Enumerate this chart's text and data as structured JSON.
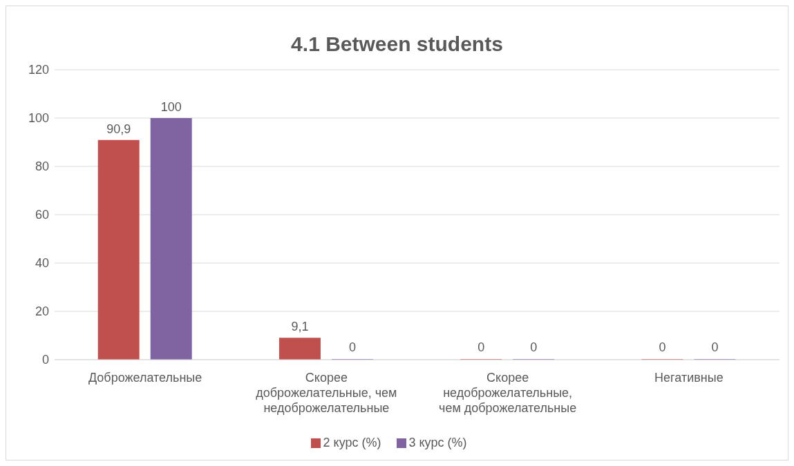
{
  "chart_data": {
    "type": "bar",
    "title": "4.1 Between students",
    "categories": [
      "Доброжелательные",
      "Скорее доброжелательные, чем недоброжелательные",
      "Скорее недоброжелательные, чем доброжелательные",
      "Негативные"
    ],
    "series": [
      {
        "name": "2 курс (%)",
        "color": "#c0504d",
        "values": [
          90.9,
          9.1,
          0,
          0
        ],
        "value_labels": [
          "90,9",
          "9,1",
          "0",
          "0"
        ]
      },
      {
        "name": "3 курс (%)",
        "color": "#8064a2",
        "values": [
          100,
          0,
          0,
          0
        ],
        "value_labels": [
          "100",
          "0",
          "0",
          "0"
        ]
      }
    ],
    "ylim": [
      0,
      120
    ],
    "yticks": [
      0,
      20,
      40,
      60,
      80,
      100,
      120
    ],
    "grid": "y",
    "legend": "bottom"
  }
}
